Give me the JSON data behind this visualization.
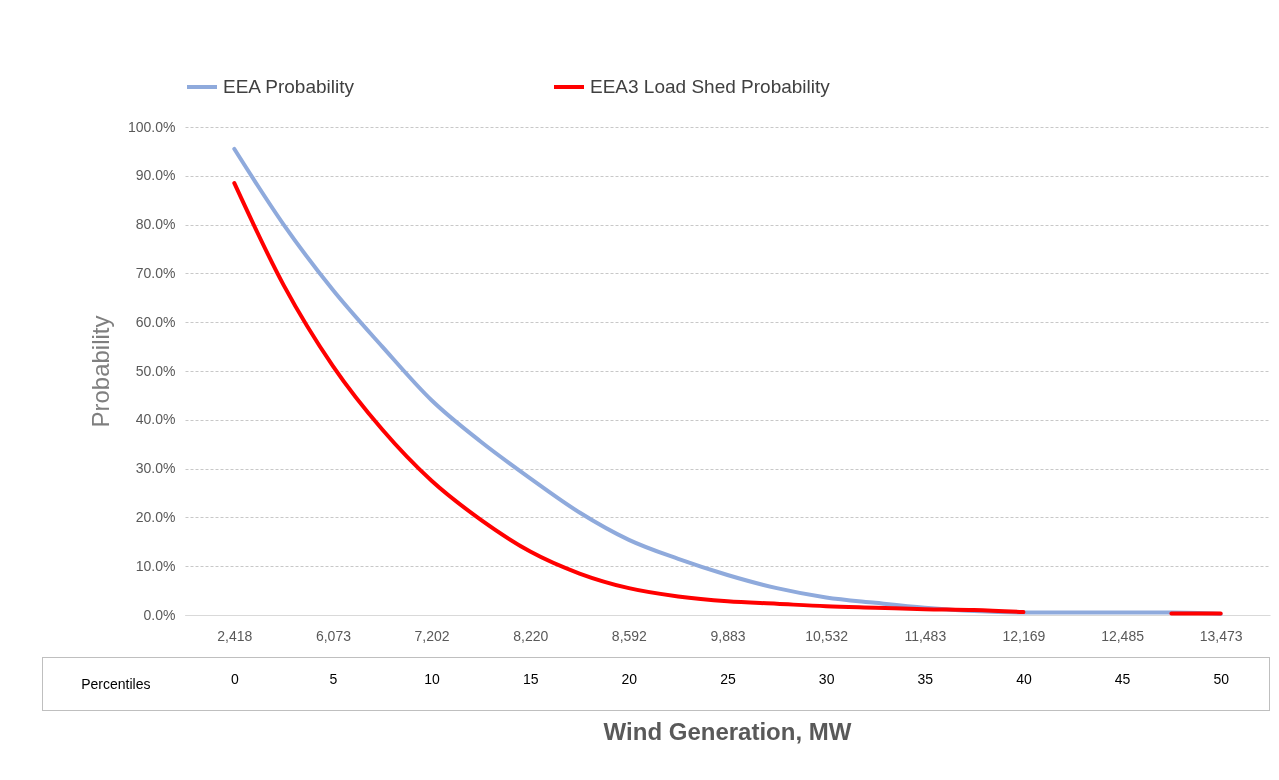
{
  "chart_data": {
    "type": "line",
    "xlabel": "Wind Generation, MW",
    "ylabel": "Probability",
    "x2label": "Percentiles",
    "categories": [
      "2,418",
      null,
      "6,073",
      null,
      "7,202",
      null,
      "8,220",
      null,
      "8,592",
      null,
      "9,883",
      null,
      "10,532",
      null,
      "11,483",
      null,
      "12,169",
      null,
      "12,485",
      null,
      "13,473"
    ],
    "series": [
      {
        "name": "EEA Probability",
        "color": "#8faadc",
        "values": [
          95.5,
          80,
          66.6,
          55,
          44,
          35.5,
          28,
          21,
          15.4,
          11.5,
          8.2,
          5.5,
          3.6,
          2.5,
          1.5,
          0.8,
          0.5,
          0.5,
          0.5,
          0.5,
          0.2
        ]
      },
      {
        "name": "EEA3 Load Shed Probability",
        "color": "#ff0000",
        "values": [
          88.5,
          67.6,
          51,
          38,
          27.5,
          19.5,
          13,
          8.5,
          5.5,
          3.8,
          2.8,
          2.3,
          1.8,
          1.5,
          1.2,
          1.0,
          0.6,
          null,
          null,
          0.3,
          0.3
        ]
      }
    ],
    "x2lim": [
      -2.5,
      52.5
    ],
    "x2ticks": [
      0,
      5,
      10,
      15,
      20,
      25,
      30,
      35,
      40,
      45,
      50
    ],
    "ylim": [
      0,
      100
    ],
    "yticks": [
      {
        "value": 0,
        "label": "0.0%"
      },
      {
        "value": 10,
        "label": "10.0%"
      },
      {
        "value": 20,
        "label": "20.0%"
      },
      {
        "value": 30,
        "label": "30.0%"
      },
      {
        "value": 40,
        "label": "40.0%"
      },
      {
        "value": 50,
        "label": "50.0%"
      },
      {
        "value": 60,
        "label": "60.0%"
      },
      {
        "value": 70,
        "label": "70.0%"
      },
      {
        "value": 80,
        "label": "80.0%"
      },
      {
        "value": 90,
        "label": "90.0%"
      },
      {
        "value": 100,
        "label": "100.0%"
      }
    ],
    "grid": "y",
    "legend": "top"
  }
}
